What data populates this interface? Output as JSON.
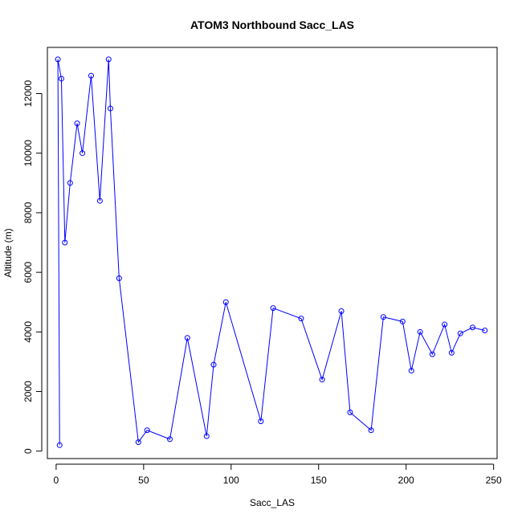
{
  "chart_data": {
    "type": "scatter",
    "title": "ATOM3 Northbound Sacc_LAS",
    "xlabel": "Sacc_LAS",
    "ylabel": "Altitude (m)",
    "xlim": [
      -5,
      252
    ],
    "ylim": [
      -250,
      13550
    ],
    "x_ticks": [
      0,
      50,
      100,
      150,
      200,
      250
    ],
    "y_ticks": [
      0,
      2000,
      4000,
      6000,
      8000,
      10000,
      12000
    ],
    "marker": "open-circle",
    "connected": true,
    "color": "#0000ff",
    "representative_points": [
      {
        "x": 245,
        "y": 4050
      },
      {
        "x": 238,
        "y": 4150
      },
      {
        "x": 231,
        "y": 3950
      },
      {
        "x": 226,
        "y": 3300
      },
      {
        "x": 222,
        "y": 4250
      },
      {
        "x": 215,
        "y": 3250
      },
      {
        "x": 208,
        "y": 4000
      },
      {
        "x": 203,
        "y": 2700
      },
      {
        "x": 198,
        "y": 4350
      },
      {
        "x": 187,
        "y": 4500
      },
      {
        "x": 180,
        "y": 700
      },
      {
        "x": 168,
        "y": 1300
      },
      {
        "x": 163,
        "y": 4700
      },
      {
        "x": 152,
        "y": 2400
      },
      {
        "x": 140,
        "y": 4450
      },
      {
        "x": 124,
        "y": 4800
      },
      {
        "x": 117,
        "y": 1000
      },
      {
        "x": 97,
        "y": 5000
      },
      {
        "x": 90,
        "y": 2900
      },
      {
        "x": 86,
        "y": 500
      },
      {
        "x": 75,
        "y": 3800
      },
      {
        "x": 65,
        "y": 400
      },
      {
        "x": 52,
        "y": 700
      },
      {
        "x": 47,
        "y": 300
      },
      {
        "x": 36,
        "y": 5800
      },
      {
        "x": 31,
        "y": 11500
      },
      {
        "x": 30,
        "y": 13150
      },
      {
        "x": 25,
        "y": 8400
      },
      {
        "x": 20,
        "y": 12600
      },
      {
        "x": 15,
        "y": 10000
      },
      {
        "x": 12,
        "y": 11000
      },
      {
        "x": 8,
        "y": 9000
      },
      {
        "x": 5,
        "y": 7000
      },
      {
        "x": 3,
        "y": 12500
      },
      {
        "x": 1,
        "y": 13150
      },
      {
        "x": 2,
        "y": 200
      }
    ]
  }
}
